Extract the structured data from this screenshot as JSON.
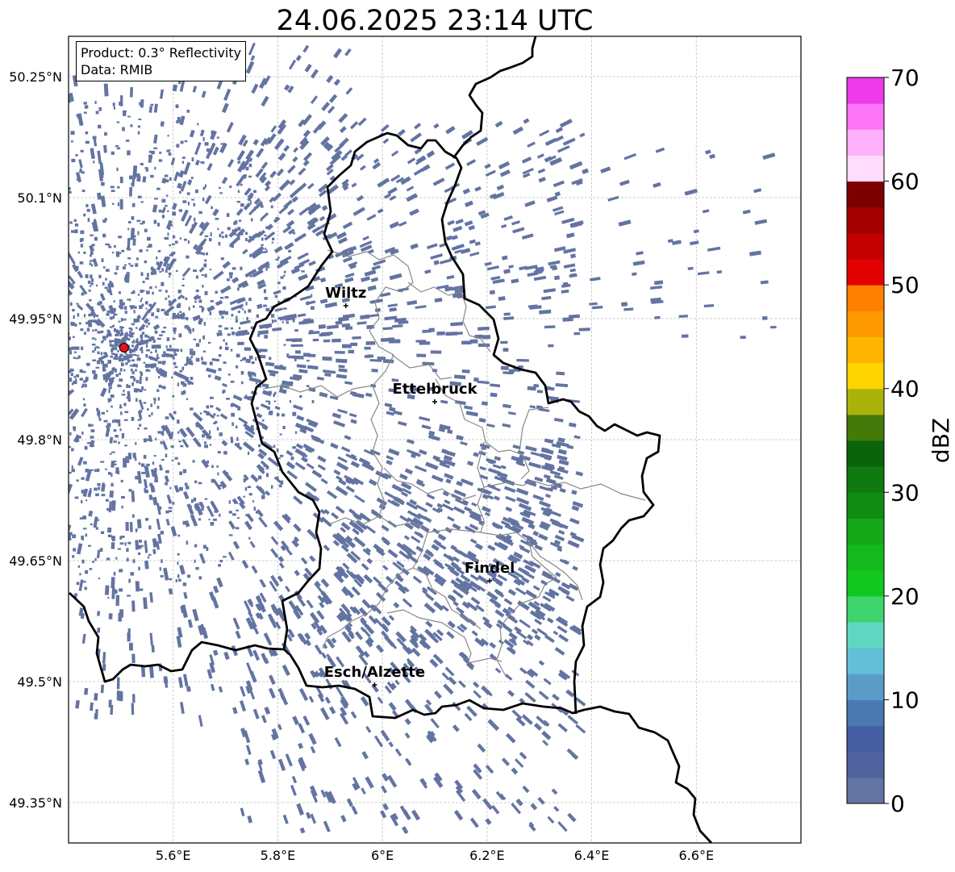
{
  "title": "24.06.2025 23:14 UTC",
  "info": {
    "product_line": "Product: 0.3° Reflectivity",
    "data_line": "Data: RMIB"
  },
  "map": {
    "lon_range": [
      5.4,
      6.8
    ],
    "lat_range": [
      49.3,
      50.3
    ],
    "lon_ticks": [
      {
        "value": 5.6,
        "label": "5.6°E"
      },
      {
        "value": 5.8,
        "label": "5.8°E"
      },
      {
        "value": 6.0,
        "label": "6°E"
      },
      {
        "value": 6.2,
        "label": "6.2°E"
      },
      {
        "value": 6.4,
        "label": "6.4°E"
      },
      {
        "value": 6.6,
        "label": "6.6°E"
      }
    ],
    "lat_ticks": [
      {
        "value": 50.25,
        "label": "50.25°N"
      },
      {
        "value": 50.1,
        "label": "50.1°N"
      },
      {
        "value": 49.95,
        "label": "49.95°N"
      },
      {
        "value": 49.8,
        "label": "49.8°N"
      },
      {
        "value": 49.65,
        "label": "49.65°N"
      },
      {
        "value": 49.5,
        "label": "49.5°N"
      },
      {
        "value": 49.35,
        "label": "49.35°N"
      }
    ],
    "cities": [
      {
        "name": "Wiltz",
        "lon": 5.93,
        "lat": 49.966
      },
      {
        "name": "Ettelbruck",
        "lon": 6.1,
        "lat": 49.847
      },
      {
        "name": "Findel",
        "lon": 6.205,
        "lat": 49.625
      },
      {
        "name": "Esch/Alzette",
        "lon": 5.985,
        "lat": 49.496
      }
    ],
    "radar_site": {
      "lon": 5.506,
      "lat": 49.914,
      "color": "#e8121b"
    },
    "echo_color": "#6374a2",
    "border_color": "#000000",
    "canton_color": "#888888"
  },
  "colorbar": {
    "label": "dBZ",
    "min": 0,
    "max": 70,
    "step": 2.5,
    "tick_labels": [
      "0",
      "10",
      "20",
      "30",
      "40",
      "50",
      "60",
      "70"
    ],
    "colors": [
      "#6374a2",
      "#50639f",
      "#435ea2",
      "#4a79b2",
      "#5b9cc6",
      "#62bfd6",
      "#5ed6c2",
      "#3fd46e",
      "#12c71e",
      "#14b91d",
      "#15a818",
      "#108c12",
      "#0e7a10",
      "#0a640a",
      "#437a0a",
      "#abb30a",
      "#ffd400",
      "#ffb500",
      "#ff9900",
      "#ff7f00",
      "#e30000",
      "#c20000",
      "#a30000",
      "#7d0000",
      "#ffdcfb",
      "#ffb0f9",
      "#ff75f7",
      "#ed3be9"
    ]
  }
}
